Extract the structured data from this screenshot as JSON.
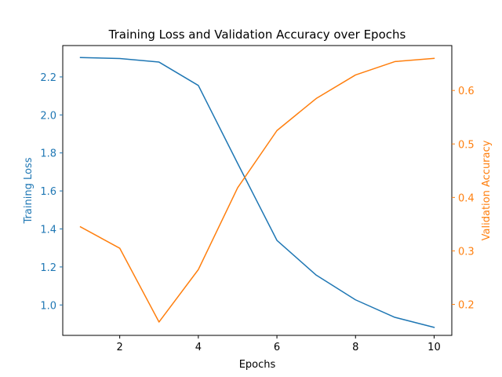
{
  "chart_data": {
    "type": "line",
    "title": "Training Loss and Validation Accuracy over Epochs",
    "xlabel": "Epochs",
    "ylabel_left": "Training Loss",
    "ylabel_right": "Validation Accuracy",
    "x": [
      1,
      2,
      3,
      4,
      5,
      6,
      7,
      8,
      9,
      10
    ],
    "xlim": [
      0.55,
      10.45
    ],
    "x_ticks": [
      2,
      4,
      6,
      8,
      10
    ],
    "ylim_left": [
      0.84,
      2.365
    ],
    "y_ticks_left": [
      "1.0",
      "1.2",
      "1.4",
      "1.6",
      "1.8",
      "2.0",
      "2.2"
    ],
    "ylim_right": [
      0.142,
      0.684
    ],
    "y_ticks_right": [
      "0.2",
      "0.3",
      "0.4",
      "0.5",
      "0.6"
    ],
    "grid": false,
    "series": [
      {
        "axis": "left",
        "color": "#1f77b4",
        "values": [
          2.302,
          2.297,
          2.278,
          2.155,
          1.745,
          1.34,
          1.157,
          1.027,
          0.935,
          0.882
        ]
      },
      {
        "axis": "right",
        "color": "#ff7f0e",
        "values": [
          0.345,
          0.305,
          0.167,
          0.265,
          0.418,
          0.525,
          0.585,
          0.629,
          0.654,
          0.66
        ]
      }
    ]
  }
}
